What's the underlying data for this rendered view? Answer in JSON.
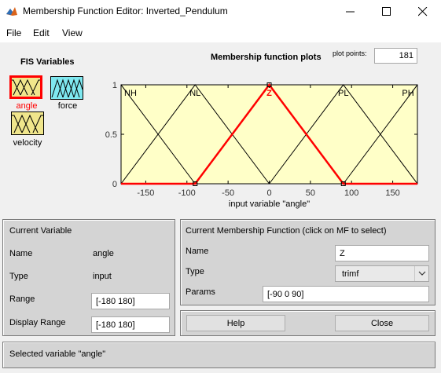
{
  "window": {
    "title": "Membership Function Editor: Inverted_Pendulum"
  },
  "menu": {
    "items": [
      "File",
      "Edit",
      "View"
    ]
  },
  "fis": {
    "title": "FIS Variables",
    "variables": [
      {
        "name": "angle",
        "color": "#f0e68c",
        "selected": true
      },
      {
        "name": "force",
        "color": "#7fe8f0",
        "selected": false
      },
      {
        "name": "velocity",
        "color": "#f0e68c",
        "selected": false
      }
    ]
  },
  "plot": {
    "title": "Membership function plots",
    "plot_points_label": "plot points:",
    "plot_points_value": "181"
  },
  "chart_data": {
    "type": "line",
    "xlabel": "input variable \"angle\"",
    "xlim": [
      -180,
      180
    ],
    "ylim": [
      0,
      1
    ],
    "xticks": [
      -150,
      -100,
      -50,
      0,
      50,
      100,
      150
    ],
    "yticks": [
      0,
      0.5,
      1
    ],
    "xtick_labels": [
      "-150",
      "-100",
      "-50",
      "0",
      "50",
      "100",
      "150"
    ],
    "ytick_labels": [
      "0",
      "0.5",
      "1"
    ],
    "background": "#ffffc8",
    "series": [
      {
        "name": "NH",
        "type": "trimf",
        "params": [
          -270,
          -180,
          -90
        ],
        "color": "#000000",
        "selected": false
      },
      {
        "name": "NL",
        "type": "trimf",
        "params": [
          -180,
          -90,
          0
        ],
        "color": "#000000",
        "selected": false
      },
      {
        "name": "Z",
        "type": "trimf",
        "params": [
          -90,
          0,
          90
        ],
        "color": "#ff0000",
        "selected": true
      },
      {
        "name": "PL",
        "type": "trimf",
        "params": [
          0,
          90,
          180
        ],
        "color": "#000000",
        "selected": false
      },
      {
        "name": "PH",
        "type": "trimf",
        "params": [
          90,
          180,
          270
        ],
        "color": "#000000",
        "selected": false
      }
    ]
  },
  "current_variable": {
    "title": "Current Variable",
    "name_label": "Name",
    "name_value": "angle",
    "type_label": "Type",
    "type_value": "input",
    "range_label": "Range",
    "range_value": "[-180 180]",
    "display_range_label": "Display Range",
    "display_range_value": "[-180 180]"
  },
  "current_mf": {
    "title": "Current Membership Function (click on MF to select)",
    "name_label": "Name",
    "name_value": "Z",
    "type_label": "Type",
    "type_value": "trimf",
    "params_label": "Params",
    "params_value": "[-90 0 90]"
  },
  "buttons": {
    "help": "Help",
    "close": "Close"
  },
  "status": {
    "text": "Selected variable \"angle\""
  }
}
